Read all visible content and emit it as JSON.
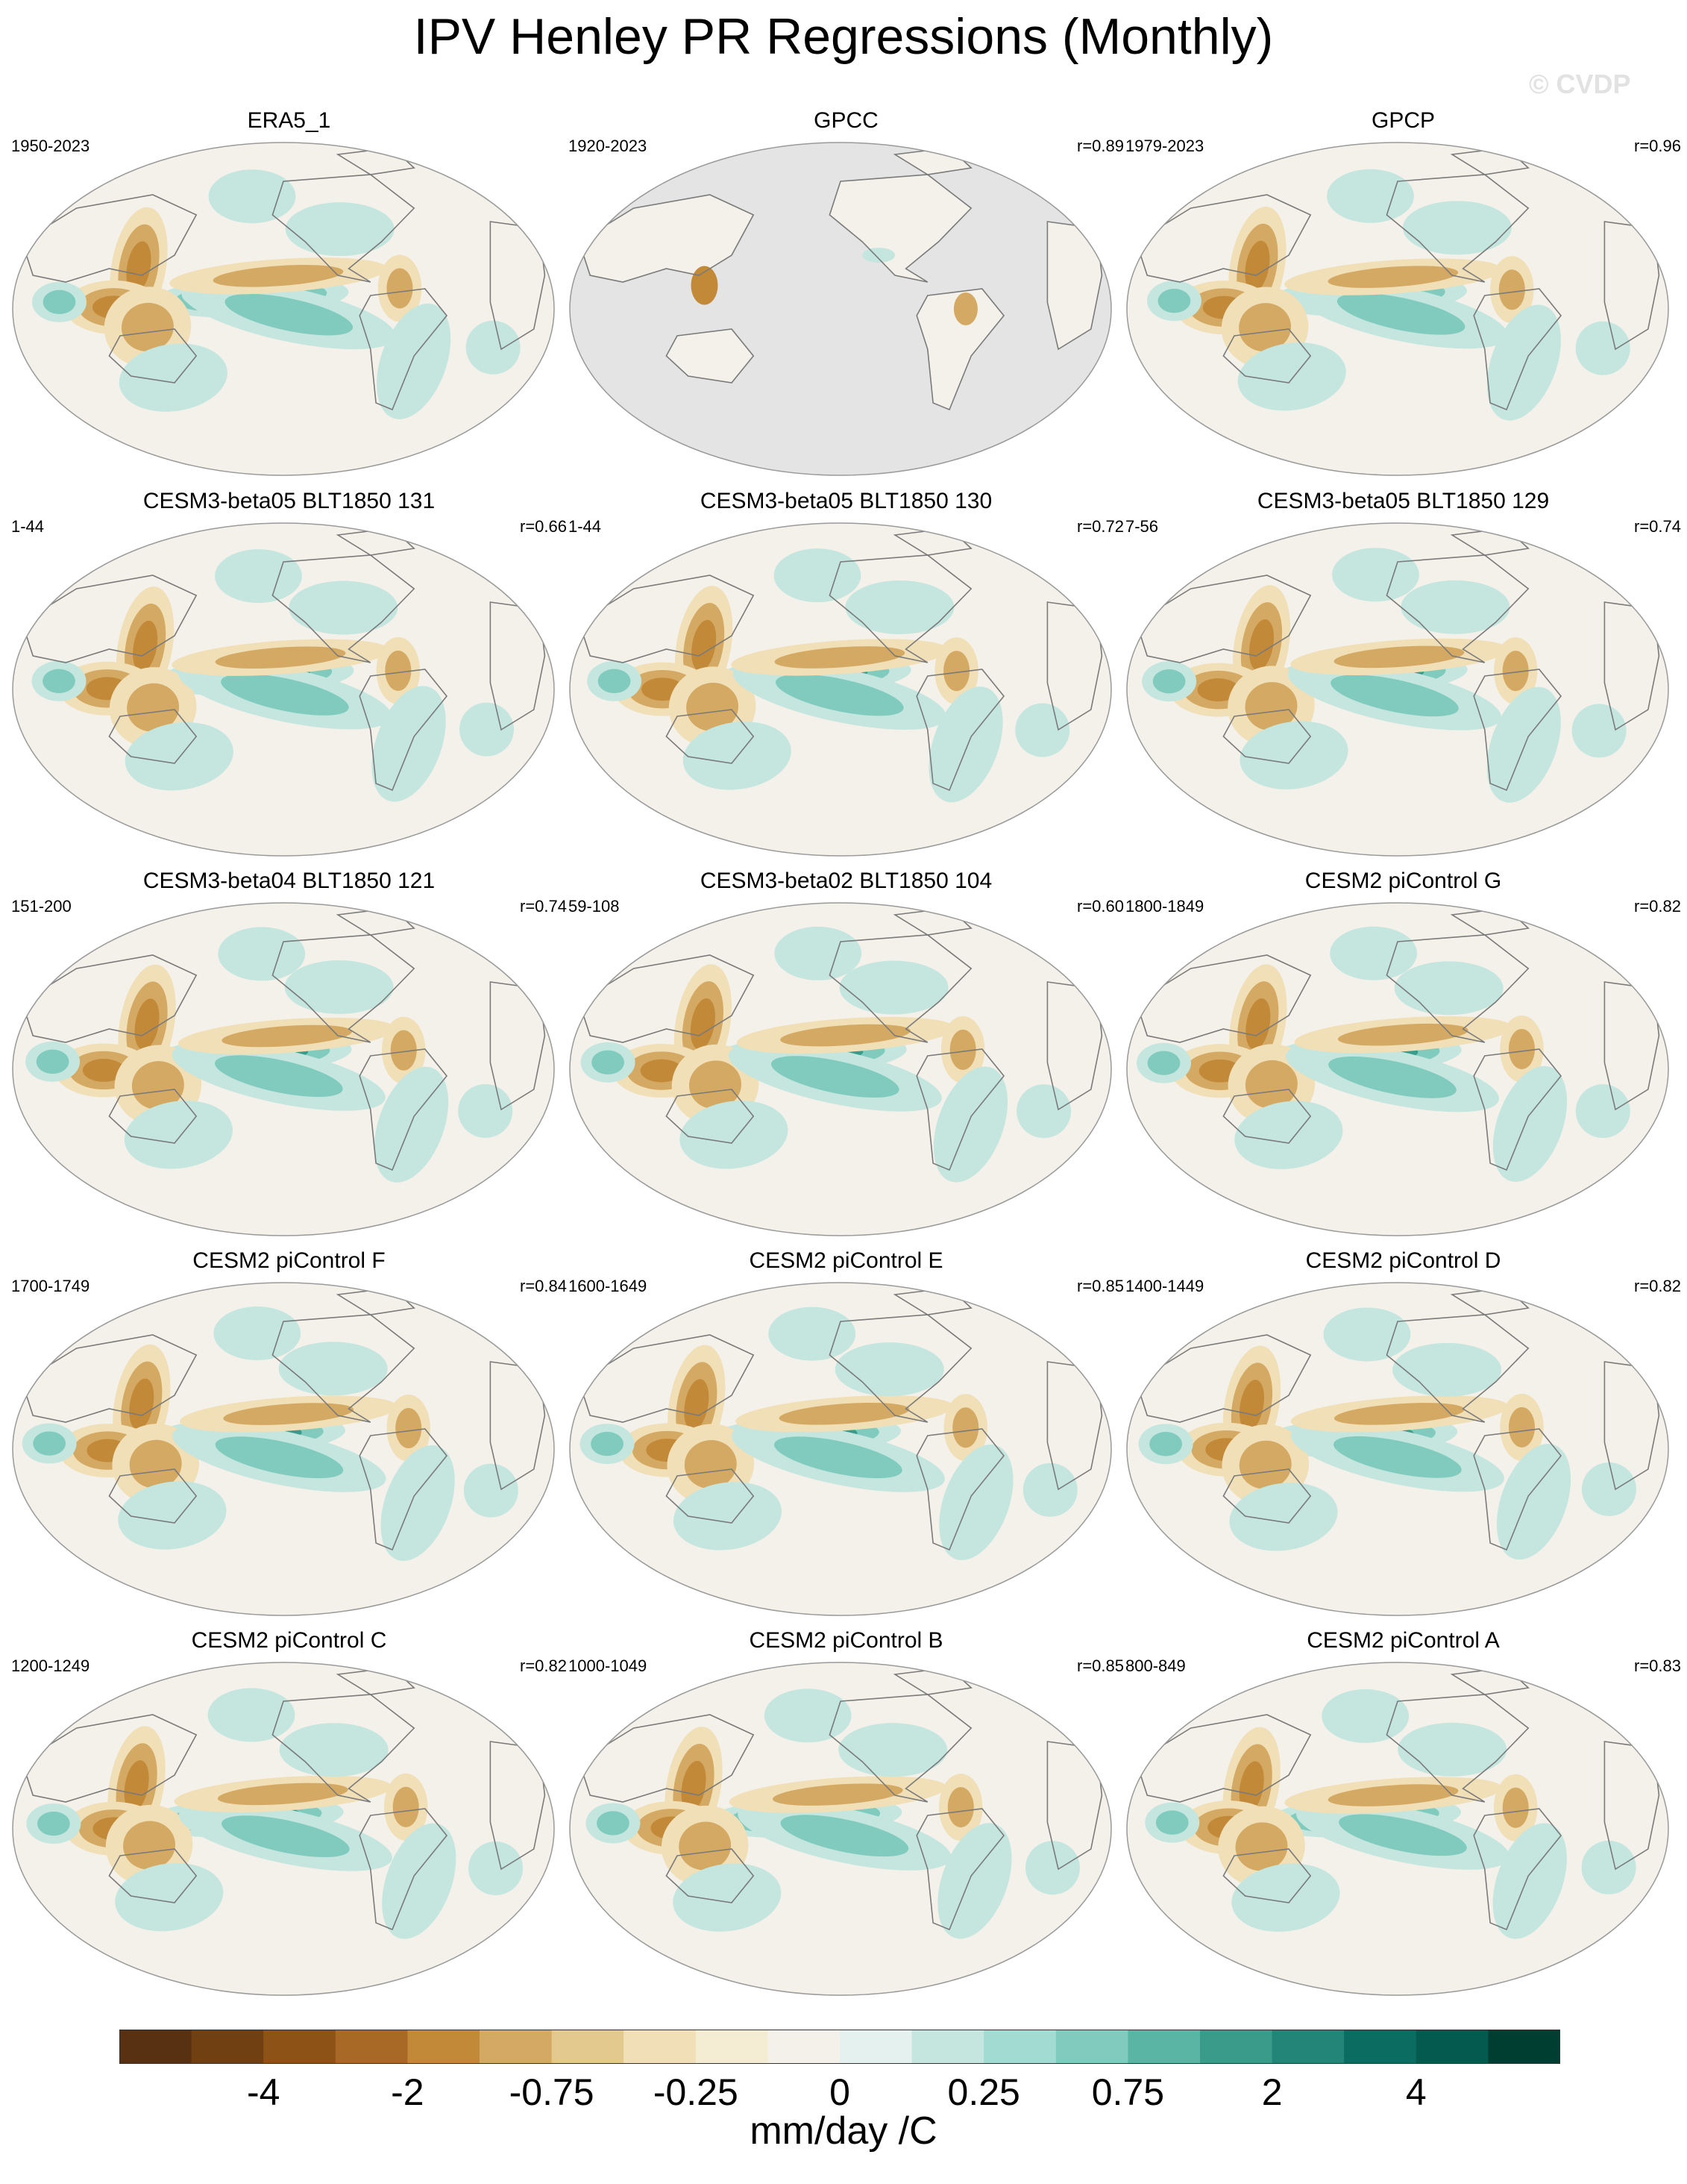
{
  "chart_data": {
    "type": "heatmap",
    "title": "IPV Henley PR Regressions (Monthly)",
    "watermark": "© CVDP",
    "projection": "Robinson (Pacific-centered)",
    "units": "mm/day /C",
    "colorbar": {
      "ticks": [
        "-4",
        "-2",
        "-0.75",
        "-0.25",
        "0",
        "0.25",
        "0.75",
        "2",
        "4"
      ],
      "colors": [
        "#573111",
        "#714012",
        "#8d5215",
        "#a86926",
        "#c28939",
        "#d4a963",
        "#e4c98f",
        "#f0dfb7",
        "#f4ecd3",
        "#f4f1ea",
        "#e5f1ee",
        "#c4e6df",
        "#a2dbd2",
        "#80cbbe",
        "#5bb5a5",
        "#3b9b8b",
        "#228578",
        "#0b6c61",
        "#055a50",
        "#013e32"
      ]
    },
    "panels": [
      {
        "name": "ERA5_1",
        "years": "1950-2023",
        "r": ""
      },
      {
        "name": "GPCC",
        "years": "1920-2023",
        "r": "r=0.89"
      },
      {
        "name": "GPCP",
        "years": "1979-2023",
        "r": "r=0.96"
      },
      {
        "name": "CESM3-beta05 BLT1850 131",
        "years": "1-44",
        "r": "r=0.66"
      },
      {
        "name": "CESM3-beta05 BLT1850 130",
        "years": "1-44",
        "r": "r=0.72"
      },
      {
        "name": "CESM3-beta05 BLT1850 129",
        "years": "7-56",
        "r": "r=0.74"
      },
      {
        "name": "CESM3-beta04 BLT1850 121",
        "years": "151-200",
        "r": "r=0.74"
      },
      {
        "name": "CESM3-beta02 BLT1850 104",
        "years": "59-108",
        "r": "r=0.60"
      },
      {
        "name": "CESM2 piControl G",
        "years": "1800-1849",
        "r": "r=0.82"
      },
      {
        "name": "CESM2 piControl F",
        "years": "1700-1749",
        "r": "r=0.84"
      },
      {
        "name": "CESM2 piControl E",
        "years": "1600-1649",
        "r": "r=0.85"
      },
      {
        "name": "CESM2 piControl D",
        "years": "1400-1449",
        "r": "r=0.82"
      },
      {
        "name": "CESM2 piControl C",
        "years": "1200-1249",
        "r": "r=0.82"
      },
      {
        "name": "CESM2 piControl B",
        "years": "1000-1049",
        "r": "r=0.85"
      },
      {
        "name": "CESM2 piControl A",
        "years": "800-849",
        "r": "r=0.83"
      }
    ]
  }
}
